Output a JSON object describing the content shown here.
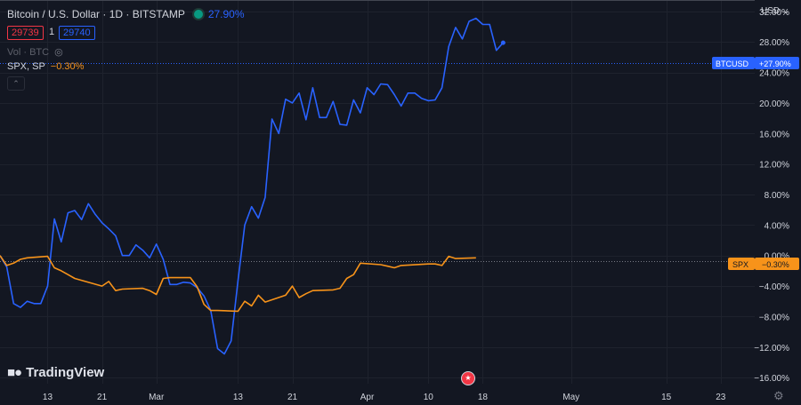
{
  "header": {
    "title": "Bitcoin / U.S. Dollar · 1D · BITSTAMP",
    "change": "27.90%",
    "bid": "29739",
    "spread": "1",
    "ask": "29740",
    "volume_label": "Vol · BTC",
    "eye_icon": "eye-off-icon",
    "compare_symbol": "SPX, SP",
    "compare_change": "−0.30%",
    "collapse_icon": "chevron-up-icon"
  },
  "currency_selector": "USD",
  "branding": {
    "logo_text": "TradingView"
  },
  "price_tags": {
    "btc_label": "BTCUSD",
    "btc_value": "+27.90%",
    "spx_label": "SPX",
    "spx_value": "−0.30%"
  },
  "colors": {
    "background": "#131722",
    "btc_line": "#2962ff",
    "spx_line": "#f7931a",
    "grid": "#1e222d",
    "text": "#d1d4dc",
    "muted": "#787b86"
  },
  "chart_data": {
    "type": "line",
    "yscale": "percent",
    "ylim": [
      -16.8,
      33.5
    ],
    "yticks": [
      {
        "v": 32,
        "label": "32.00%"
      },
      {
        "v": 28,
        "label": "28.00%"
      },
      {
        "v": 24,
        "label": "24.00%"
      },
      {
        "v": 20,
        "label": "20.00%"
      },
      {
        "v": 16,
        "label": "16.00%"
      },
      {
        "v": 12,
        "label": "12.00%"
      },
      {
        "v": 8,
        "label": "8.00%"
      },
      {
        "v": 4,
        "label": "4.00%"
      },
      {
        "v": 0,
        "label": "0.00%"
      },
      {
        "v": -4,
        "label": "−4.00%"
      },
      {
        "v": -8,
        "label": "−8.00%"
      },
      {
        "v": -12,
        "label": "−12.00%"
      },
      {
        "v": -16,
        "label": "−16.00%"
      }
    ],
    "xlim": [
      "2023-02-06",
      "2023-05-28"
    ],
    "xticks": [
      {
        "date": "2023-02-13",
        "label": "13"
      },
      {
        "date": "2023-02-21",
        "label": "21"
      },
      {
        "date": "2023-03-01",
        "label": "Mar"
      },
      {
        "date": "2023-03-13",
        "label": "13"
      },
      {
        "date": "2023-03-21",
        "label": "21"
      },
      {
        "date": "2023-04-01",
        "label": "Apr"
      },
      {
        "date": "2023-04-10",
        "label": "10"
      },
      {
        "date": "2023-04-18",
        "label": "18"
      },
      {
        "date": "2023-05-01",
        "label": "May"
      },
      {
        "date": "2023-05-15",
        "label": "15"
      },
      {
        "date": "2023-05-23",
        "label": "23"
      }
    ],
    "series": [
      {
        "name": "BTCUSD",
        "points": [
          [
            "2023-02-06",
            0
          ],
          [
            "2023-02-07",
            -1.5
          ],
          [
            "2023-02-08",
            -6.3
          ],
          [
            "2023-02-09",
            -6.8
          ],
          [
            "2023-02-10",
            -6
          ],
          [
            "2023-02-11",
            -6.3
          ],
          [
            "2023-02-12",
            -6.3
          ],
          [
            "2023-02-13",
            -4
          ],
          [
            "2023-02-14",
            4.8
          ],
          [
            "2023-02-15",
            1.8
          ],
          [
            "2023-02-16",
            5.6
          ],
          [
            "2023-02-17",
            5.9
          ],
          [
            "2023-02-18",
            4.7
          ],
          [
            "2023-02-19",
            6.8
          ],
          [
            "2023-02-20",
            5.4
          ],
          [
            "2023-02-21",
            4.3
          ],
          [
            "2023-02-22",
            3.5
          ],
          [
            "2023-02-23",
            2.6
          ],
          [
            "2023-02-24",
            0
          ],
          [
            "2023-02-25",
            0
          ],
          [
            "2023-02-26",
            1.4
          ],
          [
            "2023-02-27",
            0.7
          ],
          [
            "2023-02-28",
            -0.3
          ],
          [
            "2023-03-01",
            1.5
          ],
          [
            "2023-03-02",
            -0.5
          ],
          [
            "2023-03-03",
            -3.8
          ],
          [
            "2023-03-04",
            -3.8
          ],
          [
            "2023-03-05",
            -3.5
          ],
          [
            "2023-03-06",
            -3.6
          ],
          [
            "2023-03-07",
            -4.2
          ],
          [
            "2023-03-08",
            -5.3
          ],
          [
            "2023-03-09",
            -7.2
          ],
          [
            "2023-03-10",
            -12.2
          ],
          [
            "2023-03-11",
            -12.9
          ],
          [
            "2023-03-12",
            -11.2
          ],
          [
            "2023-03-13",
            -3.3
          ],
          [
            "2023-03-14",
            4
          ],
          [
            "2023-03-15",
            6.4
          ],
          [
            "2023-03-16",
            4.9
          ],
          [
            "2023-03-17",
            7.6
          ],
          [
            "2023-03-18",
            17.9
          ],
          [
            "2023-03-19",
            16
          ],
          [
            "2023-03-20",
            20.5
          ],
          [
            "2023-03-21",
            20
          ],
          [
            "2023-03-22",
            21.3
          ],
          [
            "2023-03-23",
            17.8
          ],
          [
            "2023-03-24",
            22
          ],
          [
            "2023-03-25",
            18.1
          ],
          [
            "2023-03-26",
            18.1
          ],
          [
            "2023-03-27",
            20.2
          ],
          [
            "2023-03-28",
            17.2
          ],
          [
            "2023-03-29",
            17.1
          ],
          [
            "2023-03-30",
            20.4
          ],
          [
            "2023-03-31",
            18.7
          ],
          [
            "2023-04-01",
            22
          ],
          [
            "2023-04-02",
            21.1
          ],
          [
            "2023-04-03",
            22.5
          ],
          [
            "2023-04-04",
            22.4
          ],
          [
            "2023-04-05",
            21.1
          ],
          [
            "2023-04-06",
            19.6
          ],
          [
            "2023-04-07",
            21.3
          ],
          [
            "2023-04-08",
            21.3
          ],
          [
            "2023-04-09",
            20.6
          ],
          [
            "2023-04-10",
            20.3
          ],
          [
            "2023-04-11",
            20.4
          ],
          [
            "2023-04-12",
            22
          ],
          [
            "2023-04-13",
            27.4
          ],
          [
            "2023-04-14",
            29.9
          ],
          [
            "2023-04-15",
            28.4
          ],
          [
            "2023-04-16",
            30.7
          ],
          [
            "2023-04-17",
            31.1
          ],
          [
            "2023-04-18",
            30.3
          ],
          [
            "2023-04-19",
            30.3
          ],
          [
            "2023-04-20",
            26.9
          ],
          [
            "2023-04-21",
            27.9
          ]
        ]
      },
      {
        "name": "SPX",
        "points": [
          [
            "2023-02-06",
            0
          ],
          [
            "2023-02-07",
            -1.3
          ],
          [
            "2023-02-08",
            -1
          ],
          [
            "2023-02-09",
            -0.5
          ],
          [
            "2023-02-10",
            -0.3
          ],
          [
            "2023-02-13",
            -0.1
          ],
          [
            "2023-02-14",
            -1.6
          ],
          [
            "2023-02-15",
            -2
          ],
          [
            "2023-02-16",
            -2.5
          ],
          [
            "2023-02-17",
            -3
          ],
          [
            "2023-02-21",
            -4
          ],
          [
            "2023-02-22",
            -3.4
          ],
          [
            "2023-02-23",
            -4.6
          ],
          [
            "2023-02-24",
            -4.4
          ],
          [
            "2023-02-27",
            -4.3
          ],
          [
            "2023-02-28",
            -4.6
          ],
          [
            "2023-03-01",
            -5.1
          ],
          [
            "2023-03-02",
            -3
          ],
          [
            "2023-03-03",
            -2.9
          ],
          [
            "2023-03-06",
            -2.9
          ],
          [
            "2023-03-07",
            -4.1
          ],
          [
            "2023-03-08",
            -6.4
          ],
          [
            "2023-03-09",
            -7.2
          ],
          [
            "2023-03-10",
            -7.2
          ],
          [
            "2023-03-13",
            -7.3
          ],
          [
            "2023-03-14",
            -6
          ],
          [
            "2023-03-15",
            -6.6
          ],
          [
            "2023-03-16",
            -5.2
          ],
          [
            "2023-03-17",
            -6.1
          ],
          [
            "2023-03-20",
            -5.2
          ],
          [
            "2023-03-21",
            -4
          ],
          [
            "2023-03-22",
            -5.5
          ],
          [
            "2023-03-23",
            -5
          ],
          [
            "2023-03-24",
            -4.6
          ],
          [
            "2023-03-27",
            -4.5
          ],
          [
            "2023-03-28",
            -4.3
          ],
          [
            "2023-03-29",
            -3
          ],
          [
            "2023-03-30",
            -2.5
          ],
          [
            "2023-03-31",
            -1
          ],
          [
            "2023-04-03",
            -1.2
          ],
          [
            "2023-04-04",
            -1.4
          ],
          [
            "2023-04-05",
            -1.6
          ],
          [
            "2023-04-06",
            -1.3
          ],
          [
            "2023-04-10",
            -1.1
          ],
          [
            "2023-04-11",
            -1.1
          ],
          [
            "2023-04-12",
            -1.3
          ],
          [
            "2023-04-13",
            -0.1
          ],
          [
            "2023-04-14",
            -0.4
          ],
          [
            "2023-04-17",
            -0.3
          ]
        ]
      }
    ]
  }
}
